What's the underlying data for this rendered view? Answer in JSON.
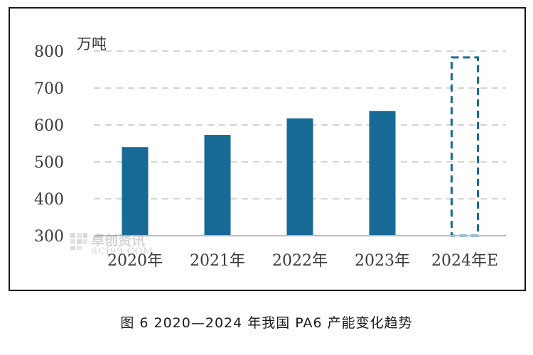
{
  "chart_data": {
    "type": "bar",
    "unit_label": "万吨",
    "categories": [
      "2020年",
      "2021年",
      "2022年",
      "2023年",
      "2024年E"
    ],
    "values": [
      540,
      573,
      618,
      638,
      783
    ],
    "estimated": [
      false,
      false,
      false,
      false,
      true
    ],
    "ylim": [
      300,
      800
    ],
    "yticks": [
      300,
      400,
      500,
      600,
      700,
      800
    ],
    "grid": true,
    "legend": "none",
    "colors": {
      "bar": "#176a96",
      "estimate_outline": "#176a96",
      "grid": "#d4d4d4",
      "axis": "#bdbdbd"
    }
  },
  "watermark": {
    "brand": "卓创资讯",
    "site": "SCI99.COM"
  },
  "caption": "图 6 2020—2024 年我国 PA6 产能变化趋势"
}
